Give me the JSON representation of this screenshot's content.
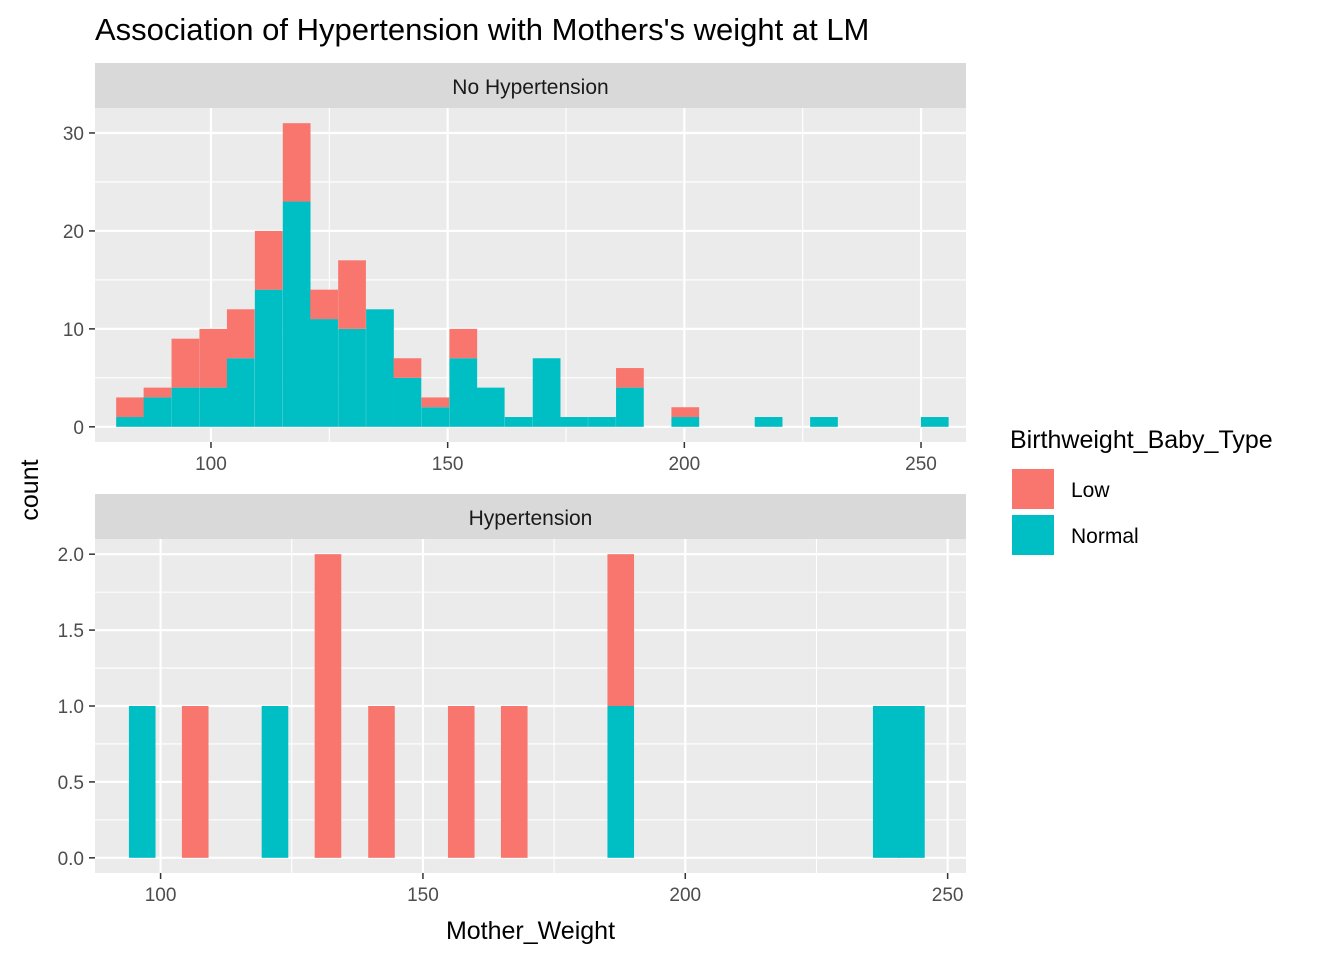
{
  "chart_data": {
    "type": "bar",
    "subtype": "stacked histogram, faceted",
    "title": "Association of Hypertension with Mothers's weight at LM",
    "xlabel": "Mother_Weight",
    "ylabel": "count",
    "legend": {
      "title": "Birthweight_Baby_Type",
      "position": "right",
      "entries": [
        {
          "name": "Low",
          "color": "#F8766D"
        },
        {
          "name": "Normal",
          "color": "#00BFC4"
        }
      ]
    },
    "colors": {
      "Low": "#F8766D",
      "Normal": "#00BFC4",
      "panel_bg": "#EBEBEB",
      "strip_bg": "#D9D9D9",
      "grid": "#FFFFFF"
    },
    "grid": true,
    "facets": [
      {
        "label": "No Hypertension",
        "xlim": [
          75.5,
          259.5
        ],
        "ylim": [
          -1.55,
          32.55
        ],
        "xticks": [
          100,
          150,
          200,
          250
        ],
        "xtick_labels": [
          "100",
          "150",
          "200",
          "250"
        ],
        "yticks": [
          0,
          10,
          20,
          30
        ],
        "ytick_labels": [
          "0",
          "10",
          "20",
          "30"
        ],
        "bin_width": 5.86,
        "bins": [
          {
            "x": 82.9,
            "Normal": 1,
            "Low": 2
          },
          {
            "x": 88.7,
            "Normal": 3,
            "Low": 1
          },
          {
            "x": 94.6,
            "Normal": 4,
            "Low": 5
          },
          {
            "x": 100.5,
            "Normal": 4,
            "Low": 6
          },
          {
            "x": 106.3,
            "Normal": 7,
            "Low": 5
          },
          {
            "x": 112.2,
            "Normal": 14,
            "Low": 6
          },
          {
            "x": 118.1,
            "Normal": 23,
            "Low": 8
          },
          {
            "x": 123.9,
            "Normal": 11,
            "Low": 3
          },
          {
            "x": 129.8,
            "Normal": 10,
            "Low": 7
          },
          {
            "x": 135.7,
            "Normal": 12,
            "Low": 0
          },
          {
            "x": 141.5,
            "Normal": 5,
            "Low": 2
          },
          {
            "x": 147.4,
            "Normal": 2,
            "Low": 1
          },
          {
            "x": 153.3,
            "Normal": 7,
            "Low": 3
          },
          {
            "x": 159.1,
            "Normal": 4,
            "Low": 0
          },
          {
            "x": 165.0,
            "Normal": 1,
            "Low": 0
          },
          {
            "x": 170.9,
            "Normal": 7,
            "Low": 0
          },
          {
            "x": 176.7,
            "Normal": 1,
            "Low": 0
          },
          {
            "x": 182.6,
            "Normal": 1,
            "Low": 0
          },
          {
            "x": 188.5,
            "Normal": 4,
            "Low": 2
          },
          {
            "x": 200.2,
            "Normal": 1,
            "Low": 1
          },
          {
            "x": 217.8,
            "Normal": 1,
            "Low": 0
          },
          {
            "x": 229.5,
            "Normal": 1,
            "Low": 0
          },
          {
            "x": 252.9,
            "Normal": 1,
            "Low": 0
          }
        ]
      },
      {
        "label": "Hypertension",
        "xlim": [
          87.5,
          253.5
        ],
        "ylim": [
          -0.1,
          2.1
        ],
        "xticks": [
          100,
          150,
          200,
          250
        ],
        "xtick_labels": [
          "100",
          "150",
          "200",
          "250"
        ],
        "yticks": [
          0,
          0.5,
          1,
          1.5,
          2
        ],
        "ytick_labels": [
          "0.0",
          "0.5",
          "1.0",
          "1.5",
          "2.0"
        ],
        "bin_width": 5.07,
        "bins": [
          {
            "x": 96.5,
            "Normal": 1,
            "Low": 0
          },
          {
            "x": 106.6,
            "Normal": 0,
            "Low": 1
          },
          {
            "x": 121.8,
            "Normal": 1,
            "Low": 0
          },
          {
            "x": 131.9,
            "Normal": 0,
            "Low": 2
          },
          {
            "x": 142.1,
            "Normal": 0,
            "Low": 1
          },
          {
            "x": 157.3,
            "Normal": 0,
            "Low": 1
          },
          {
            "x": 167.4,
            "Normal": 0,
            "Low": 1
          },
          {
            "x": 187.7,
            "Normal": 1,
            "Low": 1
          },
          {
            "x": 238.3,
            "Normal": 1,
            "Low": 0
          },
          {
            "x": 243.1,
            "Normal": 1,
            "Low": 0
          }
        ]
      }
    ]
  }
}
